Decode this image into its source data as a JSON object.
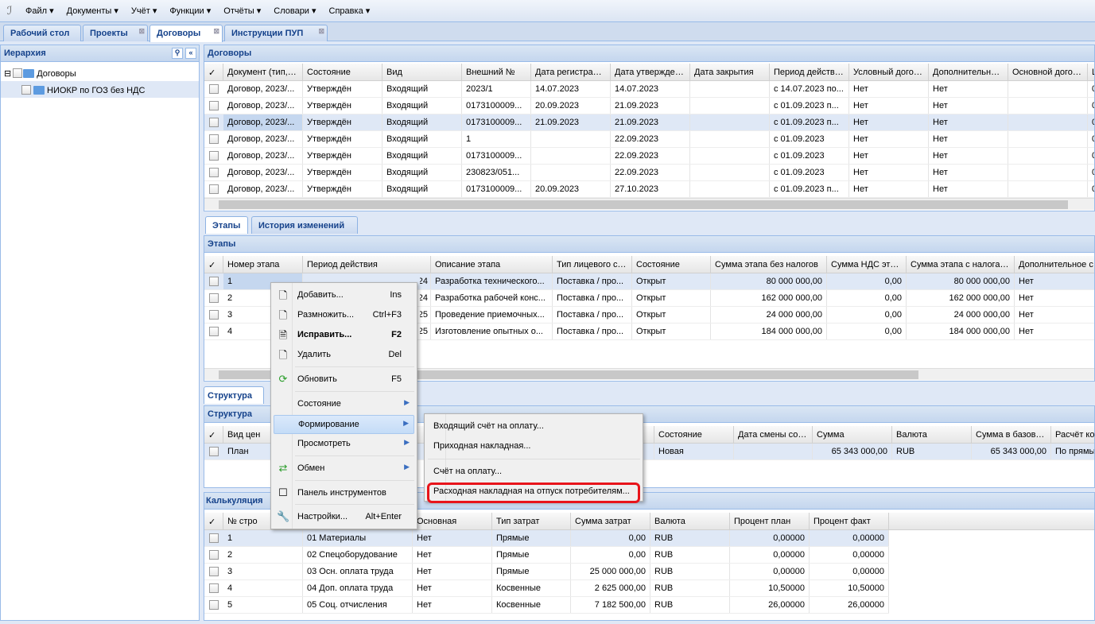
{
  "menu": [
    "Файл ▾",
    "Документы ▾",
    "Учёт ▾",
    "Функции ▾",
    "Отчёты ▾",
    "Словари ▾",
    "Справка ▾"
  ],
  "tabs": [
    "Рабочий стол",
    "Проекты",
    "Договоры",
    "Инструкции ПУП"
  ],
  "hierarchy": {
    "title": "Иерархия",
    "root": "Договоры",
    "child": "НИОКР по ГОЗ без НДС"
  },
  "contracts": {
    "title": "Договоры",
    "columns": [
      "Документ (тип, №",
      "Состояние",
      "Вид",
      "Внешний №",
      "Дата регистрации",
      "Дата утверждения",
      "Дата закрытия",
      "Период действия...",
      "Условный договор",
      "Дополнительное с",
      "Основной договор",
      "Ц"
    ],
    "rows": [
      [
        "Договор, 2023/...",
        "Утверждён",
        "Входящий",
        "2023/1",
        "14.07.2023",
        "14.07.2023",
        "",
        "с 14.07.2023 по...",
        "Нет",
        "Нет",
        "",
        "0"
      ],
      [
        "Договор, 2023/...",
        "Утверждён",
        "Входящий",
        "0173100009...",
        "20.09.2023",
        "21.09.2023",
        "",
        "с 01.09.2023 п...",
        "Нет",
        "Нет",
        "",
        "0"
      ],
      [
        "Договор, 2023/...",
        "Утверждён",
        "Входящий",
        "0173100009...",
        "21.09.2023",
        "21.09.2023",
        "",
        "с 01.09.2023 п...",
        "Нет",
        "Нет",
        "",
        "0"
      ],
      [
        "Договор, 2023/...",
        "Утверждён",
        "Входящий",
        "1",
        "",
        "22.09.2023",
        "",
        "с 01.09.2023",
        "Нет",
        "Нет",
        "",
        "0"
      ],
      [
        "Договор, 2023/...",
        "Утверждён",
        "Входящий",
        "0173100009...",
        "",
        "22.09.2023",
        "",
        "с 01.09.2023",
        "Нет",
        "Нет",
        "",
        "0"
      ],
      [
        "Договор, 2023/...",
        "Утверждён",
        "Входящий",
        "230823/051...",
        "",
        "22.09.2023",
        "",
        "с 01.09.2023",
        "Нет",
        "Нет",
        "",
        "0"
      ],
      [
        "Договор, 2023/...",
        "Утверждён",
        "Входящий",
        "0173100009...",
        "20.09.2023",
        "27.10.2023",
        "",
        "с 01.09.2023 п...",
        "Нет",
        "Нет",
        "",
        "0"
      ]
    ]
  },
  "subtabs": [
    "Этапы",
    "История изменений"
  ],
  "stages": {
    "title": "Этапы",
    "columns": [
      "Номер этапа",
      "Период действия",
      "Описание этапа",
      "Тип лицевого счёт",
      "Состояние",
      "Сумма этапа без налогов",
      "Сумма НДС этапа",
      "Сумма этапа с налогами",
      "Дополнительное с"
    ],
    "rows": [
      [
        "1",
        "с 01.09.2023 по 31.05.2024",
        "Разработка технического...",
        "Поставка / про...",
        "Открыт",
        "80 000 000,00",
        "0,00",
        "80 000 000,00",
        "Нет"
      ],
      [
        "2",
        "...24",
        "Разработка рабочей конс...",
        "Поставка / про...",
        "Открыт",
        "162 000 000,00",
        "0,00",
        "162 000 000,00",
        "Нет"
      ],
      [
        "3",
        "...25",
        "Проведение приемочных...",
        "Поставка / про...",
        "Открыт",
        "24 000 000,00",
        "0,00",
        "24 000 000,00",
        "Нет"
      ],
      [
        "4",
        "...25",
        "Изготовление опытных о...",
        "Поставка / про...",
        "Открыт",
        "184 000 000,00",
        "0,00",
        "184 000 000,00",
        "Нет"
      ]
    ]
  },
  "structure": {
    "tab": "Структура",
    "title": "Структура",
    "columns": [
      "Вид цен",
      "",
      "",
      "",
      "",
      "Состояние",
      "Дата смены состо",
      "Сумма",
      "Валюта",
      "Сумма в базовой в",
      "Расчёт ко"
    ],
    "rows": [
      [
        "План",
        "",
        "",
        "",
        "",
        "Новая",
        "",
        "65 343 000,00",
        "RUB",
        "65 343 000,00",
        "По прямы"
      ]
    ]
  },
  "calc": {
    "title": "Калькуляция",
    "columns": [
      "№ стро",
      "",
      "Основная",
      "Тип затрат",
      "Сумма затрат",
      "Валюта",
      "Процент план",
      "Процент факт"
    ],
    "rows": [
      [
        "1",
        "01 Материалы",
        "Нет",
        "Прямые",
        "0,00",
        "RUB",
        "0,00000",
        "0,00000"
      ],
      [
        "2",
        "02 Спецоборудование",
        "Нет",
        "Прямые",
        "0,00",
        "RUB",
        "0,00000",
        "0,00000"
      ],
      [
        "3",
        "03 Осн. оплата труда",
        "Нет",
        "Прямые",
        "25 000 000,00",
        "RUB",
        "0,00000",
        "0,00000"
      ],
      [
        "4",
        "04 Доп. оплата труда",
        "Нет",
        "Косвенные",
        "2 625 000,00",
        "RUB",
        "10,50000",
        "10,50000"
      ],
      [
        "5",
        "05 Соц. отчисления",
        "Нет",
        "Косвенные",
        "7 182 500,00",
        "RUB",
        "26,00000",
        "26,00000"
      ]
    ]
  },
  "context_menu": [
    {
      "label": "Добавить...",
      "shortcut": "Ins",
      "icon": "document-icon"
    },
    {
      "label": "Размножить...",
      "shortcut": "Ctrl+F3",
      "icon": "document-add-icon"
    },
    {
      "label": "Исправить...",
      "shortcut": "F2",
      "icon": "document-edit-icon",
      "bold": true
    },
    {
      "label": "Удалить",
      "shortcut": "Del",
      "icon": "document-delete-icon"
    },
    {
      "label": "Обновить",
      "shortcut": "F5",
      "icon": "refresh-icon"
    },
    {
      "label": "Состояние",
      "submenu": true
    },
    {
      "label": "Формирование",
      "submenu": true,
      "highlighted": true
    },
    {
      "label": "Просмотреть",
      "submenu": true
    },
    {
      "label": "Обмен",
      "submenu": true,
      "icon": "exchange-icon"
    },
    {
      "label": "Панель инструментов",
      "icon": "checkbox-icon"
    },
    {
      "label": "Настройки...",
      "shortcut": "Alt+Enter",
      "icon": "wrench-icon"
    }
  ],
  "submenu": [
    "Входящий счёт на оплату...",
    "Приходная накладная...",
    "Счёт на оплату...",
    "Расходная накладная на отпуск потребителям..."
  ],
  "highlight_color": "#e8141b"
}
